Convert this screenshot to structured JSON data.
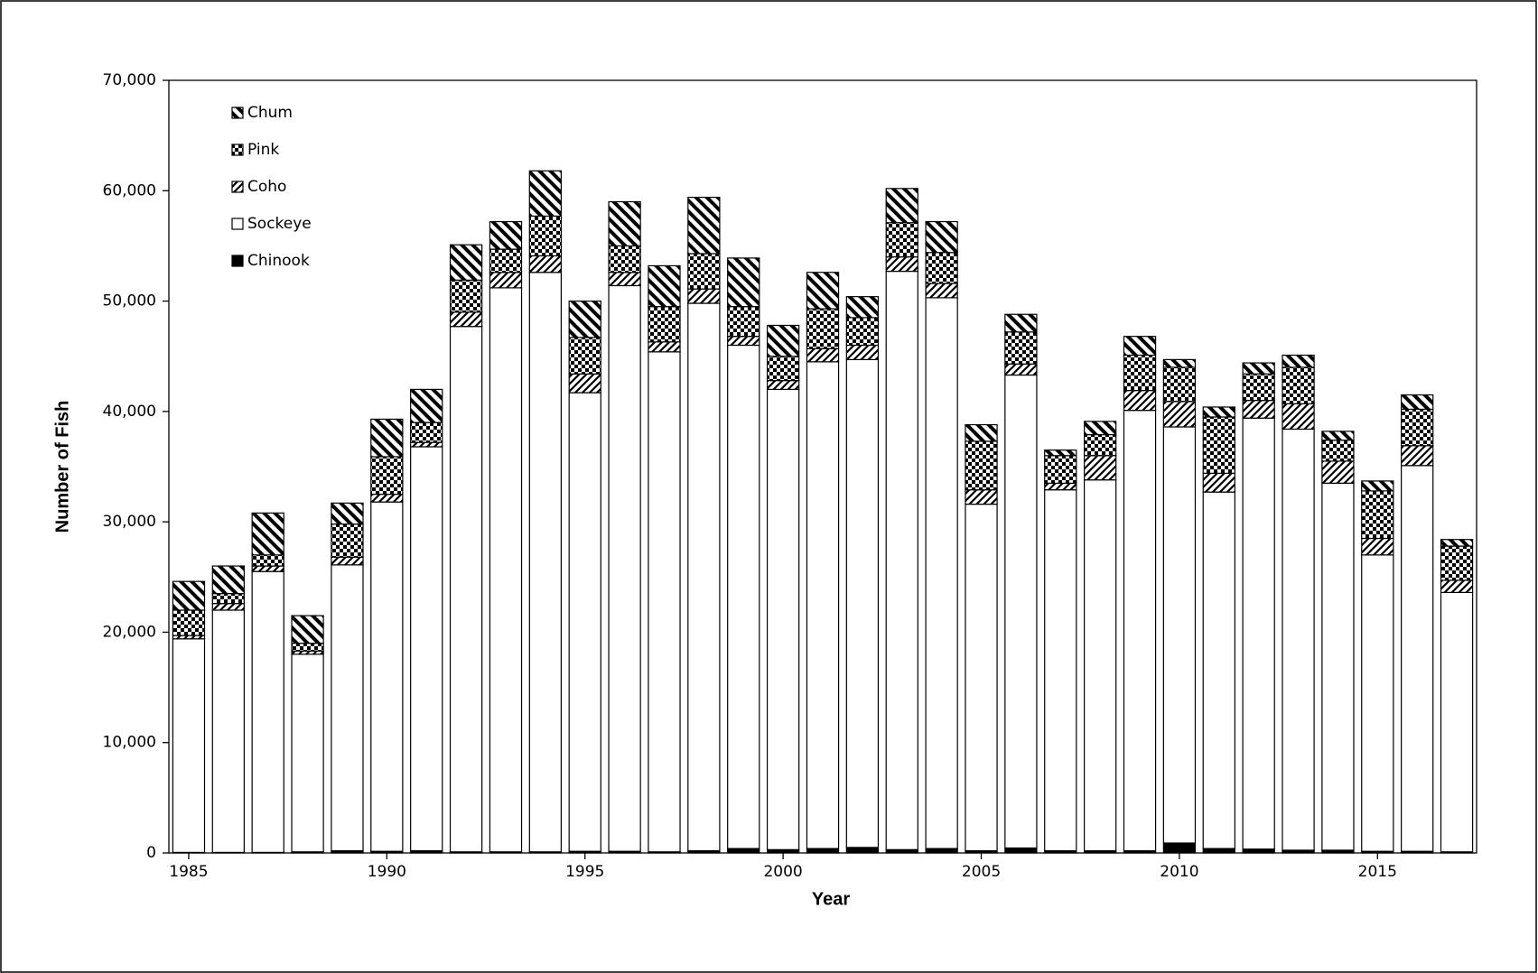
{
  "chart_data": {
    "type": "stacked-bar",
    "x_label": "Year",
    "y_label": "Number of Fish",
    "x": [
      1985,
      1986,
      1987,
      1988,
      1989,
      1990,
      1991,
      1992,
      1993,
      1994,
      1995,
      1996,
      1997,
      1998,
      1999,
      2000,
      2001,
      2002,
      2003,
      2004,
      2005,
      2006,
      2007,
      2008,
      2009,
      2010,
      2011,
      2012,
      2013,
      2014,
      2015,
      2016,
      2017
    ],
    "xlim": [
      1984.5,
      2017.5
    ],
    "xticks": [
      1985,
      1990,
      1995,
      2000,
      2005,
      2010,
      2015
    ],
    "ylim": [
      0,
      70000
    ],
    "yticks": [
      0,
      {
        "value": 10000,
        "label": "10,000"
      },
      {
        "value": 20000,
        "label": "20,000"
      },
      {
        "value": 30000,
        "label": "30,000"
      },
      {
        "value": 40000,
        "label": "40,000"
      },
      {
        "value": 50000,
        "label": "50,000"
      },
      {
        "value": 60000,
        "label": "60,000"
      },
      {
        "value": 70000,
        "label": "70,000"
      }
    ],
    "legend": "upper left",
    "series": [
      {
        "name": "Chinook",
        "color": "#000000",
        "pattern": "solid",
        "values": [
          50,
          50,
          50,
          100,
          200,
          150,
          200,
          100,
          100,
          100,
          150,
          150,
          100,
          200,
          400,
          300,
          400,
          500,
          300,
          400,
          200,
          450,
          200,
          200,
          200,
          900,
          400,
          350,
          250,
          250,
          150,
          150,
          100
        ]
      },
      {
        "name": "Sockeye",
        "color": "#ffffff",
        "pattern": "solid",
        "values": [
          19350,
          21950,
          25450,
          17900,
          25900,
          31650,
          36600,
          47600,
          51100,
          52500,
          41550,
          51250,
          45300,
          49600,
          45600,
          41700,
          44100,
          44200,
          52400,
          49900,
          31400,
          42850,
          32700,
          33600,
          39900,
          37700,
          32300,
          39050,
          38150,
          33250,
          26850,
          34950,
          23500
        ]
      },
      {
        "name": "Coho",
        "color": "#000000",
        "pattern": "hatch",
        "values": [
          300,
          600,
          500,
          300,
          700,
          700,
          400,
          1300,
          1400,
          1500,
          1700,
          1200,
          900,
          1300,
          800,
          800,
          1200,
          1300,
          1300,
          1300,
          1300,
          1000,
          600,
          2200,
          1800,
          2300,
          1700,
          1600,
          2300,
          2000,
          1500,
          1800,
          1100
        ]
      },
      {
        "name": "Pink",
        "color": "#000000",
        "pattern": "check",
        "values": [
          2300,
          900,
          1000,
          700,
          3000,
          3400,
          1800,
          2900,
          2100,
          3600,
          3300,
          2400,
          3200,
          3200,
          2700,
          2200,
          3600,
          2500,
          3100,
          2800,
          4400,
          2900,
          2500,
          1900,
          3200,
          3100,
          5100,
          2400,
          3300,
          1900,
          4300,
          3300,
          3100
        ]
      },
      {
        "name": "Chum",
        "color": "#000000",
        "pattern": "wide-hatch",
        "values": [
          2600,
          2500,
          3800,
          2500,
          1900,
          3400,
          3000,
          3200,
          2500,
          4100,
          3300,
          4000,
          3700,
          5100,
          4400,
          2800,
          3300,
          1900,
          3100,
          2800,
          1500,
          1600,
          500,
          1200,
          1700,
          700,
          900,
          1000,
          1100,
          800,
          900,
          1300,
          600
        ]
      }
    ]
  }
}
